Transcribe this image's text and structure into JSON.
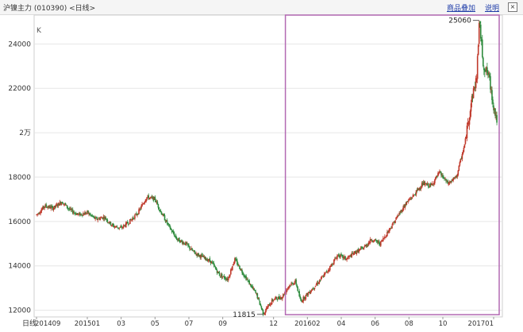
{
  "header": {
    "title": "沪镍主力 (010390) <日线>",
    "link_label": "商品叠加",
    "about_label": "说明",
    "close_icon": "close-icon"
  },
  "colors": {
    "up": "#c0392b",
    "down": "#2e8b3d",
    "box": "#b36ab3",
    "grid": "#e6e6e6",
    "axis_text": "#333333"
  },
  "chart_data": {
    "type": "candlestick",
    "unit_label": "K",
    "x_axis_label": "日线",
    "y_ticks": [
      {
        "value": 12000,
        "label": "12000"
      },
      {
        "value": 14000,
        "label": "14000"
      },
      {
        "value": 16000,
        "label": "16000"
      },
      {
        "value": 18000,
        "label": "18000"
      },
      {
        "value": 20000,
        "label": "2万"
      },
      {
        "value": 22000,
        "label": "22000"
      },
      {
        "value": 24000,
        "label": "24000"
      }
    ],
    "ylim": [
      11700,
      25300
    ],
    "x_ticks": [
      {
        "index": 0,
        "label": "201409"
      },
      {
        "index": 3,
        "label": "201501"
      },
      {
        "index": 5,
        "label": "03"
      },
      {
        "index": 7,
        "label": "05"
      },
      {
        "index": 9,
        "label": "07"
      },
      {
        "index": 11,
        "label": "09"
      },
      {
        "index": 14,
        "label": "12"
      },
      {
        "index": 16,
        "label": "201602"
      },
      {
        "index": 18,
        "label": "04"
      },
      {
        "index": 20,
        "label": "06"
      },
      {
        "index": 22,
        "label": "08"
      },
      {
        "index": 24,
        "label": "10"
      },
      {
        "index": 27,
        "label": "201701"
      }
    ],
    "x_range_months": 27,
    "trend_anchors": [
      [
        0,
        16300
      ],
      [
        0.5,
        16700
      ],
      [
        1,
        16600
      ],
      [
        1.5,
        16900
      ],
      [
        2,
        16500
      ],
      [
        2.5,
        16300
      ],
      [
        3,
        16400
      ],
      [
        3.5,
        16100
      ],
      [
        4,
        16200
      ],
      [
        4.5,
        15800
      ],
      [
        5,
        15700
      ],
      [
        5.5,
        16000
      ],
      [
        6,
        16400
      ],
      [
        6.5,
        17100
      ],
      [
        7,
        17000
      ],
      [
        7.3,
        16500
      ],
      [
        7.8,
        15800
      ],
      [
        8.3,
        15200
      ],
      [
        8.8,
        15000
      ],
      [
        9.3,
        14600
      ],
      [
        9.8,
        14400
      ],
      [
        10.3,
        14200
      ],
      [
        10.8,
        13600
      ],
      [
        11.3,
        13400
      ],
      [
        11.7,
        14300
      ],
      [
        12.1,
        13800
      ],
      [
        12.5,
        13300
      ],
      [
        13,
        12700
      ],
      [
        13.4,
        11850
      ],
      [
        13.7,
        12200
      ],
      [
        14,
        12500
      ],
      [
        14.5,
        12600
      ],
      [
        14.9,
        13100
      ],
      [
        15.3,
        13300
      ],
      [
        15.6,
        12400
      ],
      [
        16.2,
        12900
      ],
      [
        16.8,
        13400
      ],
      [
        17.3,
        13900
      ],
      [
        17.8,
        14500
      ],
      [
        18.3,
        14300
      ],
      [
        18.8,
        14600
      ],
      [
        19.3,
        14800
      ],
      [
        19.8,
        15200
      ],
      [
        20.3,
        15000
      ],
      [
        20.8,
        15600
      ],
      [
        21.3,
        16200
      ],
      [
        21.8,
        16800
      ],
      [
        22.3,
        17200
      ],
      [
        22.8,
        17700
      ],
      [
        23.3,
        17600
      ],
      [
        23.8,
        18200
      ],
      [
        24.3,
        17700
      ],
      [
        24.8,
        18000
      ],
      [
        25.3,
        19500
      ],
      [
        25.7,
        21500
      ],
      [
        26,
        22500
      ],
      [
        26.15,
        25060
      ],
      [
        26.4,
        23000
      ],
      [
        26.7,
        22600
      ],
      [
        27,
        21200
      ],
      [
        27.2,
        20500
      ]
    ],
    "annotations": [
      {
        "label": "25060",
        "value": 25060,
        "month": 26.15,
        "kind": "high"
      },
      {
        "label": "11815",
        "value": 11815,
        "month": 13.4,
        "kind": "low"
      }
    ],
    "highlight_box": {
      "from_month": 14.7,
      "to_month": 27.4,
      "from_value": 11800,
      "to_value": 25300
    }
  }
}
